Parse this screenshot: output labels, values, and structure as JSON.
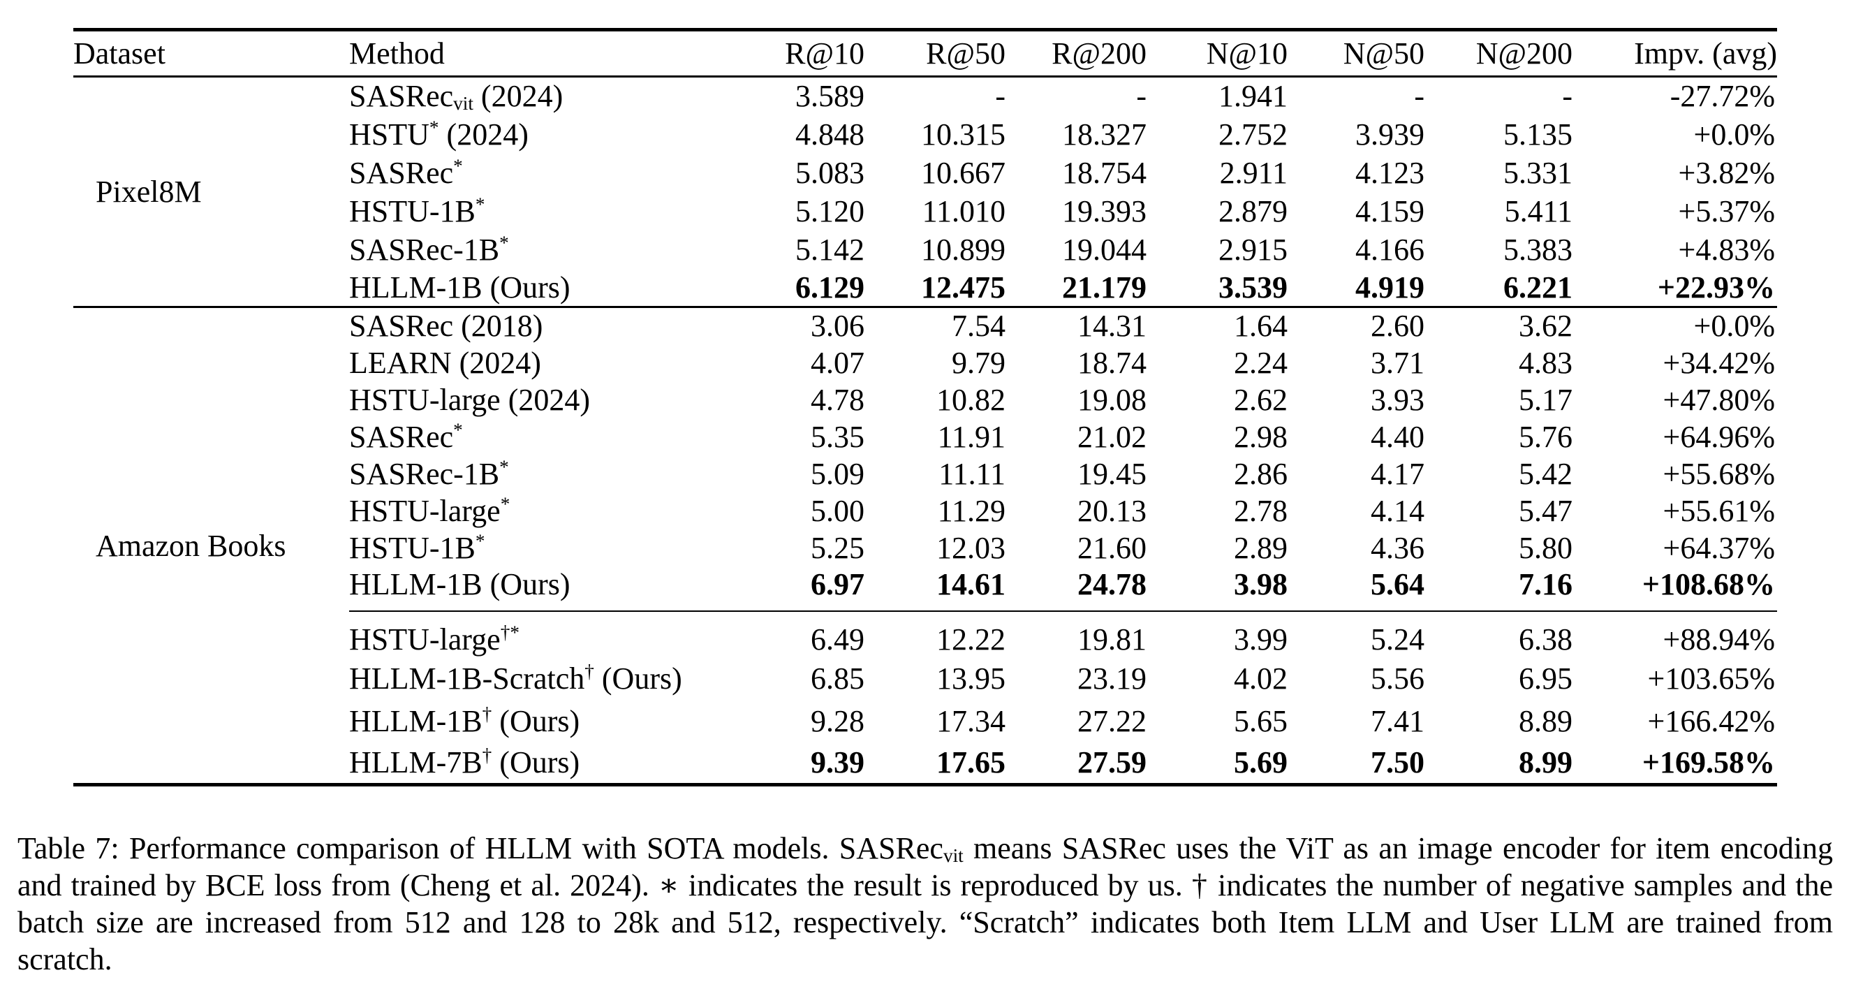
{
  "page": {
    "background": "#ffffff",
    "text_color": "#000000"
  },
  "table": {
    "columns": [
      "Dataset",
      "Method",
      "R@10",
      "R@50",
      "R@200",
      "N@10",
      "N@50",
      "N@200",
      "Impv. (avg)"
    ],
    "groups": [
      {
        "dataset": "Pixel8M",
        "rows": [
          {
            "method": {
              "base": "SASRec",
              "sub": "vit",
              "suffix": " (2024)"
            },
            "values": [
              "3.589",
              "-",
              "-",
              "1.941",
              "-",
              "-",
              "-27.72%"
            ],
            "bold": false
          },
          {
            "method": {
              "base": "HSTU",
              "sup": "*",
              "suffix": " (2024)"
            },
            "values": [
              "4.848",
              "10.315",
              "18.327",
              "2.752",
              "3.939",
              "5.135",
              "+0.0%"
            ],
            "bold": false
          },
          {
            "method": {
              "base": "SASRec",
              "sup": "*"
            },
            "values": [
              "5.083",
              "10.667",
              "18.754",
              "2.911",
              "4.123",
              "5.331",
              "+3.82%"
            ],
            "bold": false
          },
          {
            "method": {
              "base": "HSTU-1B",
              "sup": "*"
            },
            "values": [
              "5.120",
              "11.010",
              "19.393",
              "2.879",
              "4.159",
              "5.411",
              "+5.37%"
            ],
            "bold": false
          },
          {
            "method": {
              "base": "SASRec-1B",
              "sup": "*"
            },
            "values": [
              "5.142",
              "10.899",
              "19.044",
              "2.915",
              "4.166",
              "5.383",
              "+4.83%"
            ],
            "bold": false
          },
          {
            "method": {
              "base": "HLLM-1B",
              "suffix": " (Ours)"
            },
            "values": [
              "6.129",
              "12.475",
              "21.179",
              "3.539",
              "4.919",
              "6.221",
              "+22.93%"
            ],
            "bold": true
          }
        ]
      },
      {
        "dataset": "Amazon Books",
        "divider_before": 8,
        "rows": [
          {
            "method": {
              "base": "SASRec",
              "suffix": " (2018)"
            },
            "values": [
              "3.06",
              "7.54",
              "14.31",
              "1.64",
              "2.60",
              "3.62",
              "+0.0%"
            ],
            "bold": false
          },
          {
            "method": {
              "base": "LEARN",
              "suffix": " (2024)"
            },
            "values": [
              "4.07",
              "9.79",
              "18.74",
              "2.24",
              "3.71",
              "4.83",
              "+34.42%"
            ],
            "bold": false
          },
          {
            "method": {
              "base": "HSTU-large",
              "suffix": " (2024)"
            },
            "values": [
              "4.78",
              "10.82",
              "19.08",
              "2.62",
              "3.93",
              "5.17",
              "+47.80%"
            ],
            "bold": false
          },
          {
            "method": {
              "base": "SASRec",
              "sup": "*"
            },
            "values": [
              "5.35",
              "11.91",
              "21.02",
              "2.98",
              "4.40",
              "5.76",
              "+64.96%"
            ],
            "bold": false
          },
          {
            "method": {
              "base": "SASRec-1B",
              "sup": "*"
            },
            "values": [
              "5.09",
              "11.11",
              "19.45",
              "2.86",
              "4.17",
              "5.42",
              "+55.68%"
            ],
            "bold": false
          },
          {
            "method": {
              "base": "HSTU-large",
              "sup": "*"
            },
            "values": [
              "5.00",
              "11.29",
              "20.13",
              "2.78",
              "4.14",
              "5.47",
              "+55.61%"
            ],
            "bold": false
          },
          {
            "method": {
              "base": "HSTU-1B",
              "sup": "*"
            },
            "values": [
              "5.25",
              "12.03",
              "21.60",
              "2.89",
              "4.36",
              "5.80",
              "+64.37%"
            ],
            "bold": false
          },
          {
            "method": {
              "base": "HLLM-1B",
              "suffix": " (Ours)"
            },
            "values": [
              "6.97",
              "14.61",
              "24.78",
              "3.98",
              "5.64",
              "7.16",
              "+108.68%"
            ],
            "bold": true
          },
          {
            "method": {
              "base": "HSTU-large",
              "sup": "†*"
            },
            "values": [
              "6.49",
              "12.22",
              "19.81",
              "3.99",
              "5.24",
              "6.38",
              "+88.94%"
            ],
            "bold": false
          },
          {
            "method": {
              "base": "HLLM-1B-Scratch",
              "sup": "†",
              "suffix": " (Ours)"
            },
            "values": [
              "6.85",
              "13.95",
              "23.19",
              "4.02",
              "5.56",
              "6.95",
              "+103.65%"
            ],
            "bold": false
          },
          {
            "method": {
              "base": "HLLM-1B",
              "sup": "†",
              "suffix": " (Ours)"
            },
            "values": [
              "9.28",
              "17.34",
              "27.22",
              "5.65",
              "7.41",
              "8.89",
              "+166.42%"
            ],
            "bold": false
          },
          {
            "method": {
              "base": "HLLM-7B",
              "sup": "†",
              "suffix": " (Ours)"
            },
            "values": [
              "9.39",
              "17.65",
              "27.59",
              "5.69",
              "7.50",
              "8.99",
              "+169.58%"
            ],
            "bold": true
          }
        ]
      }
    ]
  },
  "caption": {
    "segments": [
      {
        "text": "Table 7: Performance comparison of HLLM with SOTA models. SASRec"
      },
      {
        "sub": "vit"
      },
      {
        "text": " means SASRec uses the ViT as an image encoder for item encoding and trained by BCE loss from (Cheng et al. 2024). ∗ indicates the result is reproduced by us. † indicates the number of negative samples and the batch size are increased from 512 and 128 to 28k and 512, respectively. “Scratch” indicates both Item LLM and User LLM are trained from scratch."
      }
    ]
  }
}
